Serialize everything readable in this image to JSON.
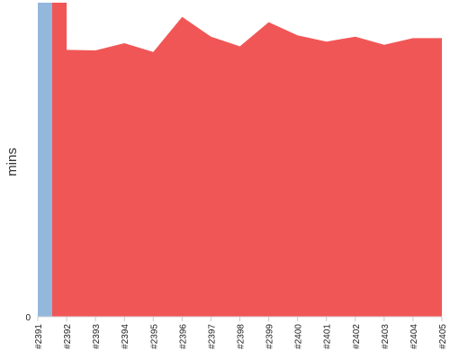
{
  "chart_data": {
    "type": "area",
    "xlabel": "",
    "ylabel": "mins",
    "y_tick_labels": [
      "0"
    ],
    "categories": [
      "#2391",
      "#2392",
      "#2393",
      "#2394",
      "#2395",
      "#2396",
      "#2397",
      "#2398",
      "#2399",
      "#2400",
      "#2401",
      "#2402",
      "#2403",
      "#2404",
      "#2405"
    ],
    "tick_labels": [
      "#2391",
      "#2392",
      "#2393",
      "#2394",
      "#2395",
      "#2396",
      "#2397",
      "#2398",
      "#2399",
      "#2400",
      "#2401",
      "#2402",
      "#2403",
      "#2404",
      "#2405"
    ],
    "series": [
      {
        "color": "#94b7dc",
        "values": [
          100,
          0,
          0,
          0,
          0,
          0,
          0,
          0,
          0,
          0,
          0,
          0,
          0,
          0,
          0
        ]
      },
      {
        "color": "#f15656",
        "values": [
          100,
          85.0,
          84.8,
          87.1,
          84.3,
          95.5,
          89.2,
          86.1,
          93.8,
          89.6,
          87.6,
          89.2,
          86.6,
          88.7,
          88.7
        ]
      }
    ],
    "ylim": [
      0,
      100
    ],
    "grid": false,
    "legend": false
  }
}
